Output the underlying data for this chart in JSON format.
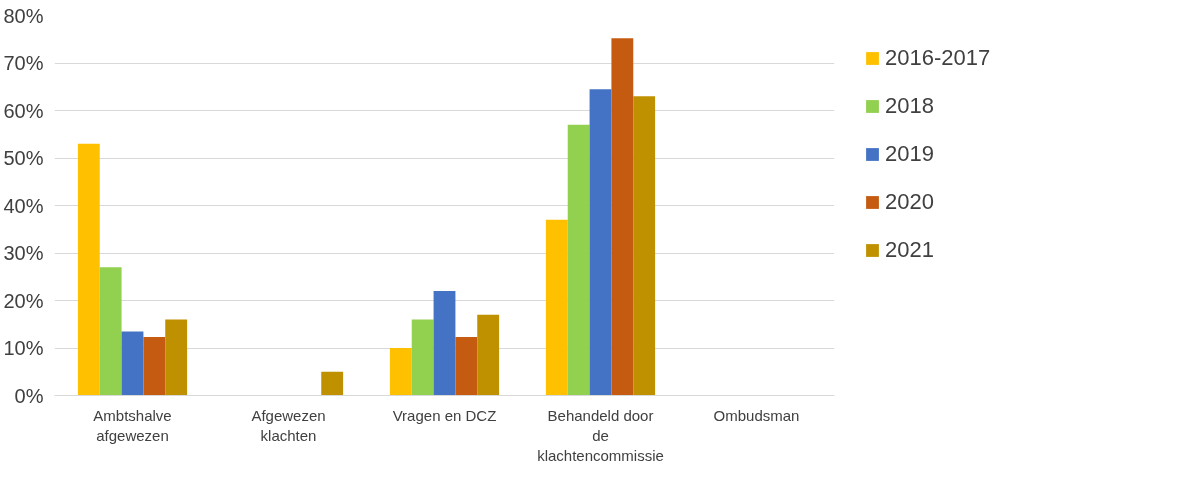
{
  "chart_data": {
    "type": "bar",
    "categories": [
      "Ambtshalve afgewezen",
      "Afgewezen klachten",
      "Vragen en DCZ",
      "Behandeld door de klachtencommissie",
      "Ombudsman"
    ],
    "series": [
      {
        "name": "2016-2017",
        "color": "#ffc000",
        "values": [
          53,
          0,
          10,
          37,
          0
        ]
      },
      {
        "name": "2018",
        "color": "#92d050",
        "values": [
          27,
          0,
          16,
          57,
          0
        ]
      },
      {
        "name": "2019",
        "color": "#4472c4",
        "values": [
          13.5,
          0,
          22,
          64.5,
          0
        ]
      },
      {
        "name": "2020",
        "color": "#c55a11",
        "values": [
          12.3,
          0,
          12.3,
          75.2,
          0
        ]
      },
      {
        "name": "2021",
        "color": "#bf9000",
        "values": [
          16,
          5,
          17,
          63,
          0
        ]
      }
    ],
    "ylim": [
      0,
      80
    ],
    "yticks": [
      {
        "value": 0,
        "label": "0%"
      },
      {
        "value": 10,
        "label": "10%"
      },
      {
        "value": 20,
        "label": "20%"
      },
      {
        "value": 30,
        "label": "30%"
      },
      {
        "value": 40,
        "label": "40%"
      },
      {
        "value": 50,
        "label": "50%"
      },
      {
        "value": 60,
        "label": "60%"
      },
      {
        "value": 70,
        "label": "70%"
      },
      {
        "value": 80,
        "label": "80%"
      }
    ],
    "grid": "y",
    "legend": "right"
  }
}
